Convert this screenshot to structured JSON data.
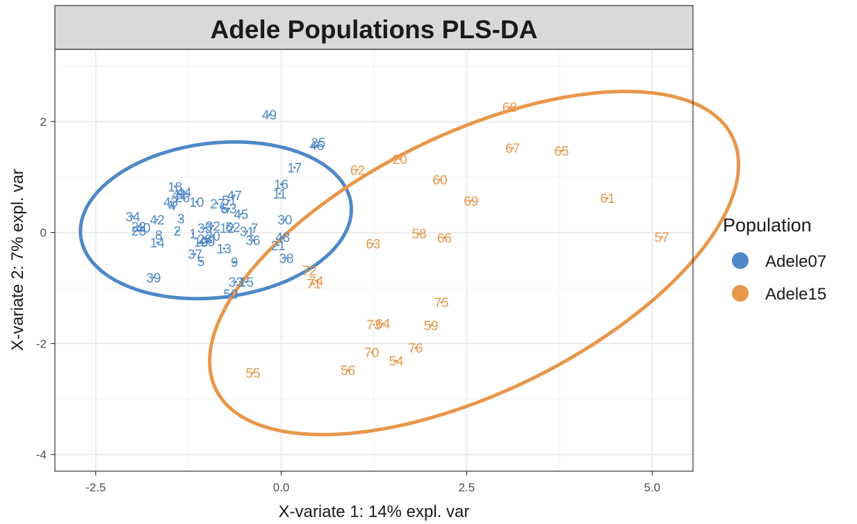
{
  "chart_data": {
    "type": "scatter",
    "title": "Adele Populations PLS-DA",
    "xlabel": "X-variate 1: 14% expl. var",
    "ylabel": "X-variate 2: 7% expl. var",
    "xlim": [
      -3.05,
      5.55
    ],
    "ylim": [
      -4.3,
      3.3
    ],
    "xticks": [
      -2.5,
      0.0,
      2.5,
      5.0
    ],
    "xtick_labels": [
      "-2.5",
      "0.0",
      "2.5",
      "5.0"
    ],
    "yticks": [
      -4,
      -2,
      0,
      2
    ],
    "ytick_labels": [
      "-4",
      "-2",
      "0",
      "2"
    ],
    "grid": true,
    "legend": {
      "title": "Population",
      "position": "right"
    },
    "series": [
      {
        "name": "Adele07",
        "color": "#4F88C7",
        "ellipse": {
          "cx": -0.88,
          "cy": 0.22,
          "rx": 1.85,
          "ry": 1.38,
          "angle_deg": 14
        },
        "points": [
          {
            "label": "49",
            "x": -0.16,
            "y": 2.12
          },
          {
            "label": "25",
            "x": 0.5,
            "y": 1.62
          },
          {
            "label": "46",
            "x": 0.48,
            "y": 1.57
          },
          {
            "label": "17",
            "x": 0.18,
            "y": 1.17
          },
          {
            "label": "16",
            "x": 0.0,
            "y": 0.87
          },
          {
            "label": "11",
            "x": -0.02,
            "y": 0.7
          },
          {
            "label": "18",
            "x": -1.43,
            "y": 0.83
          },
          {
            "label": "44",
            "x": -1.31,
            "y": 0.73
          },
          {
            "label": "41",
            "x": -1.37,
            "y": 0.69
          },
          {
            "label": "26",
            "x": -1.33,
            "y": 0.63
          },
          {
            "label": "43",
            "x": -1.49,
            "y": 0.55
          },
          {
            "label": "4",
            "x": -1.47,
            "y": 0.48
          },
          {
            "label": "10",
            "x": -1.14,
            "y": 0.55
          },
          {
            "label": "47",
            "x": -0.63,
            "y": 0.67
          },
          {
            "label": "51",
            "x": -0.7,
            "y": 0.58
          },
          {
            "label": "27",
            "x": -0.86,
            "y": 0.52
          },
          {
            "label": "6",
            "x": -0.77,
            "y": 0.43
          },
          {
            "label": "53",
            "x": -0.7,
            "y": 0.43
          },
          {
            "label": "45",
            "x": -0.54,
            "y": 0.33
          },
          {
            "label": "34",
            "x": -2.0,
            "y": 0.29
          },
          {
            "label": "42",
            "x": -1.67,
            "y": 0.23
          },
          {
            "label": "3",
            "x": -1.35,
            "y": 0.25
          },
          {
            "label": "22",
            "x": -1.92,
            "y": 0.11
          },
          {
            "label": "40",
            "x": -1.86,
            "y": 0.09
          },
          {
            "label": "23",
            "x": -1.92,
            "y": 0.03
          },
          {
            "label": "8",
            "x": -1.65,
            "y": -0.04
          },
          {
            "label": "2",
            "x": -1.4,
            "y": 0.03
          },
          {
            "label": "14",
            "x": -1.67,
            "y": -0.18
          },
          {
            "label": "35",
            "x": -1.03,
            "y": 0.08
          },
          {
            "label": "32",
            "x": -0.92,
            "y": 0.12
          },
          {
            "label": "12",
            "x": -0.73,
            "y": 0.08
          },
          {
            "label": "52",
            "x": -0.65,
            "y": 0.1
          },
          {
            "label": "1",
            "x": -1.19,
            "y": -0.02
          },
          {
            "label": "20",
            "x": -0.92,
            "y": -0.06
          },
          {
            "label": "28",
            "x": -1.03,
            "y": -0.12
          },
          {
            "label": "29",
            "x": -0.99,
            "y": -0.16
          },
          {
            "label": "19",
            "x": -1.08,
            "y": -0.17
          },
          {
            "label": "7",
            "x": -0.36,
            "y": 0.08
          },
          {
            "label": "31",
            "x": -0.46,
            "y": 0.02
          },
          {
            "label": "36",
            "x": -0.38,
            "y": -0.14
          },
          {
            "label": "30",
            "x": 0.05,
            "y": 0.23
          },
          {
            "label": "48",
            "x": 0.02,
            "y": -0.08
          },
          {
            "label": "21",
            "x": -0.04,
            "y": -0.23
          },
          {
            "label": "13",
            "x": -0.77,
            "y": -0.29
          },
          {
            "label": "37",
            "x": -1.16,
            "y": -0.39
          },
          {
            "label": "5",
            "x": -1.08,
            "y": -0.52
          },
          {
            "label": "9",
            "x": -0.63,
            "y": -0.53
          },
          {
            "label": "38",
            "x": 0.07,
            "y": -0.46
          },
          {
            "label": "39",
            "x": -1.72,
            "y": -0.81
          },
          {
            "label": "33",
            "x": -0.61,
            "y": -0.89
          },
          {
            "label": "15",
            "x": -0.47,
            "y": -0.89
          },
          {
            "label": "50",
            "x": -0.68,
            "y": -1.11
          }
        ]
      },
      {
        "name": "Adele15",
        "color": "#E8974B",
        "ellipse": {
          "cx": 2.6,
          "cy": -0.55,
          "rx": 4.2,
          "ry": 2.15,
          "angle_deg": 38
        },
        "points": [
          {
            "label": "68",
            "x": 3.08,
            "y": 2.26
          },
          {
            "label": "67",
            "x": 3.12,
            "y": 1.52
          },
          {
            "label": "65",
            "x": 3.78,
            "y": 1.47
          },
          {
            "label": "20",
            "x": 1.6,
            "y": 1.32
          },
          {
            "label": "62",
            "x": 1.03,
            "y": 1.13
          },
          {
            "label": "60",
            "x": 2.14,
            "y": 0.95
          },
          {
            "label": "69",
            "x": 2.56,
            "y": 0.57
          },
          {
            "label": "61",
            "x": 4.4,
            "y": 0.62
          },
          {
            "label": "57",
            "x": 5.13,
            "y": -0.08
          },
          {
            "label": "58",
            "x": 1.86,
            "y": -0.02
          },
          {
            "label": "66",
            "x": 2.2,
            "y": -0.09
          },
          {
            "label": "63",
            "x": 1.24,
            "y": -0.2
          },
          {
            "label": "72",
            "x": 0.38,
            "y": -0.68
          },
          {
            "label": "74",
            "x": 0.47,
            "y": -0.87
          },
          {
            "label": "71",
            "x": 0.44,
            "y": -0.92
          },
          {
            "label": "75",
            "x": 2.16,
            "y": -1.26
          },
          {
            "label": "73",
            "x": 1.25,
            "y": -1.66
          },
          {
            "label": "64",
            "x": 1.37,
            "y": -1.64
          },
          {
            "label": "59",
            "x": 2.02,
            "y": -1.67
          },
          {
            "label": "76",
            "x": 1.81,
            "y": -2.08
          },
          {
            "label": "70",
            "x": 1.22,
            "y": -2.16
          },
          {
            "label": "54",
            "x": 1.55,
            "y": -2.31
          },
          {
            "label": "56",
            "x": 0.9,
            "y": -2.48
          },
          {
            "label": "55",
            "x": -0.38,
            "y": -2.53
          }
        ]
      }
    ]
  }
}
